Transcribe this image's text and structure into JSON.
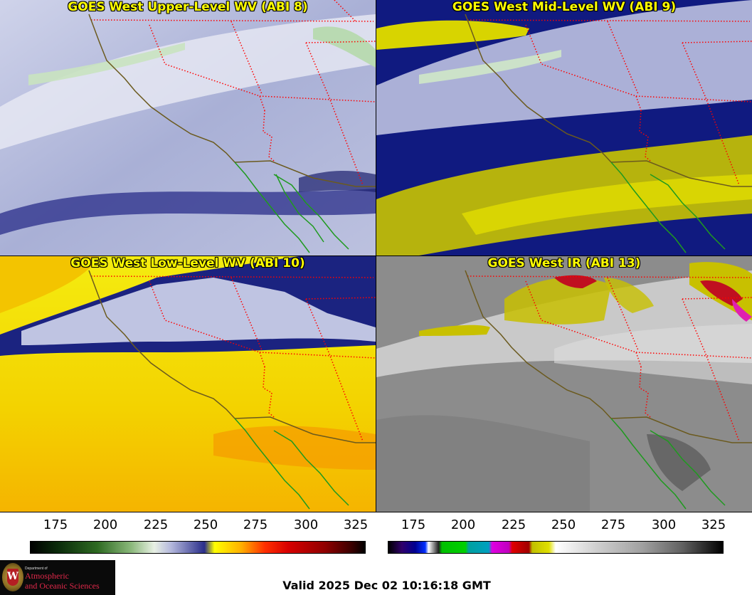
{
  "panels": [
    {
      "title": "GOES West Upper-Level WV (ABI 8)",
      "colors": {
        "base": "#b8bedd",
        "band": "#2a2e8a",
        "light": "#e3e6f2",
        "green": "#cfe8c8"
      }
    },
    {
      "title": "GOES West Mid-Level WV (ABI 9)",
      "colors": {
        "base": "#10187a",
        "band": "#d8d400",
        "light": "#d9dcee",
        "green": "#cfe8c8"
      }
    },
    {
      "title": "GOES West Low-Level WV (ABI 10)",
      "colors": {
        "base": "#f0e600",
        "band": "#f2a000",
        "light": "#d9dcee",
        "green": "#cfe8c8"
      }
    },
    {
      "title": "GOES West IR (ABI 13)",
      "colors": {
        "base": "#909090",
        "band": "#6e6e6e",
        "light": "#e0e0e0",
        "cold": "#c8c000"
      }
    }
  ],
  "colorbars": [
    {
      "name": "wv-colorbar",
      "ticks": [
        "175",
        "200",
        "225",
        "250",
        "275",
        "300",
        "325"
      ]
    },
    {
      "name": "ir-colorbar",
      "ticks": [
        "175",
        "200",
        "225",
        "250",
        "275",
        "300",
        "325"
      ]
    }
  ],
  "logo": {
    "dept": "Department of",
    "line1": "Atmospheric",
    "line2": "and Oceanic Sciences"
  },
  "valid_text": "Valid 2025 Dec 02 10:16:18 GMT",
  "colors": {
    "title_text": "#ffff00",
    "state_border": "#ff0000",
    "coastline": "#6b5a1e",
    "mexico_border": "#1f9a1f"
  }
}
